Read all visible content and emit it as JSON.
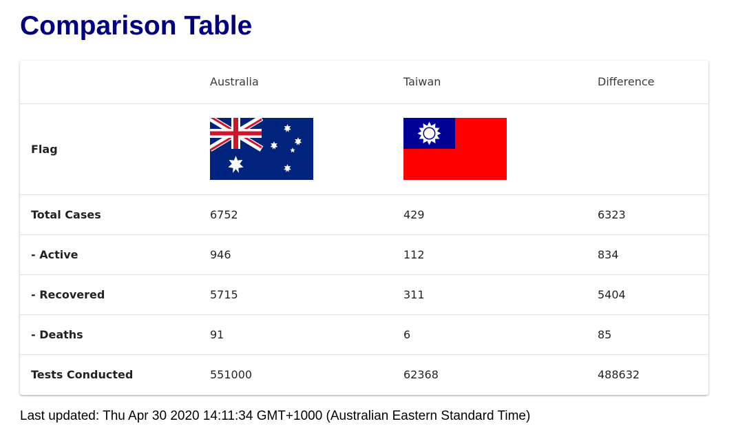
{
  "page": {
    "title": "Comparison Table",
    "last_updated": "Last updated: Thu Apr 30 2020 14:11:34 GMT+1000 (Australian Eastern Standard Time)"
  },
  "table": {
    "headers": [
      "",
      "Australia",
      "Taiwan",
      "Difference"
    ],
    "flag_label": "Flag",
    "flags": [
      {
        "country": "Australia",
        "icon": "australia-flag-icon",
        "colors": {
          "field": "#00247d",
          "red": "#cf142b",
          "white": "#ffffff"
        }
      },
      {
        "country": "Taiwan",
        "icon": "taiwan-flag-icon",
        "colors": {
          "field": "#fe0000",
          "canton": "#000095",
          "white": "#ffffff"
        }
      }
    ],
    "rows": [
      {
        "label": "Total Cases",
        "australia": "6752",
        "taiwan": "429",
        "difference": "6323"
      },
      {
        "label": "- Active",
        "australia": "946",
        "taiwan": "112",
        "difference": "834"
      },
      {
        "label": "- Recovered",
        "australia": "5715",
        "taiwan": "311",
        "difference": "5404"
      },
      {
        "label": "- Deaths",
        "australia": "91",
        "taiwan": "6",
        "difference": "85"
      },
      {
        "label": "Tests Conducted",
        "australia": "551000",
        "taiwan": "62368",
        "difference": "488632"
      }
    ]
  },
  "colors": {
    "title": "#000080",
    "border": "#e0e0e0"
  }
}
